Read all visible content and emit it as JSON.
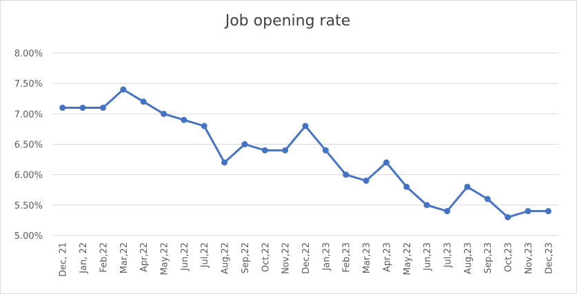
{
  "chart_data": {
    "type": "line",
    "title": "Job opening rate",
    "xlabel": "",
    "ylabel": "",
    "categories": [
      "Dec, 21",
      "Jan, 22",
      "Feb,22",
      "Mar,22",
      "Apr,22",
      "May,22",
      "Jun,22",
      "Jul,22",
      "Aug,22",
      "Sep,22",
      "Oct,22",
      "Nov,22",
      "Dec,22",
      "Jan,23",
      "Feb,23",
      "Mar,23",
      "Apr,23",
      "May,22",
      "Jun,23",
      "Jul,23",
      "Aug,23",
      "Sep,23",
      "Oct,23",
      "Nov,23",
      "Dec,23"
    ],
    "series": [
      {
        "values": [
          7.1,
          7.1,
          7.1,
          7.4,
          7.2,
          7.0,
          6.9,
          6.8,
          6.2,
          6.5,
          6.4,
          6.4,
          6.8,
          6.4,
          6.0,
          5.9,
          6.2,
          5.8,
          5.5,
          5.4,
          5.8,
          5.6,
          5.3,
          5.4,
          5.4
        ],
        "color": "#4472c4"
      }
    ],
    "ylim": [
      5.0,
      8.0
    ],
    "yticks": [
      "5.00%",
      "5.50%",
      "6.00%",
      "6.50%",
      "7.00%",
      "7.50%",
      "8.00%"
    ],
    "grid": true,
    "legend": "none"
  }
}
